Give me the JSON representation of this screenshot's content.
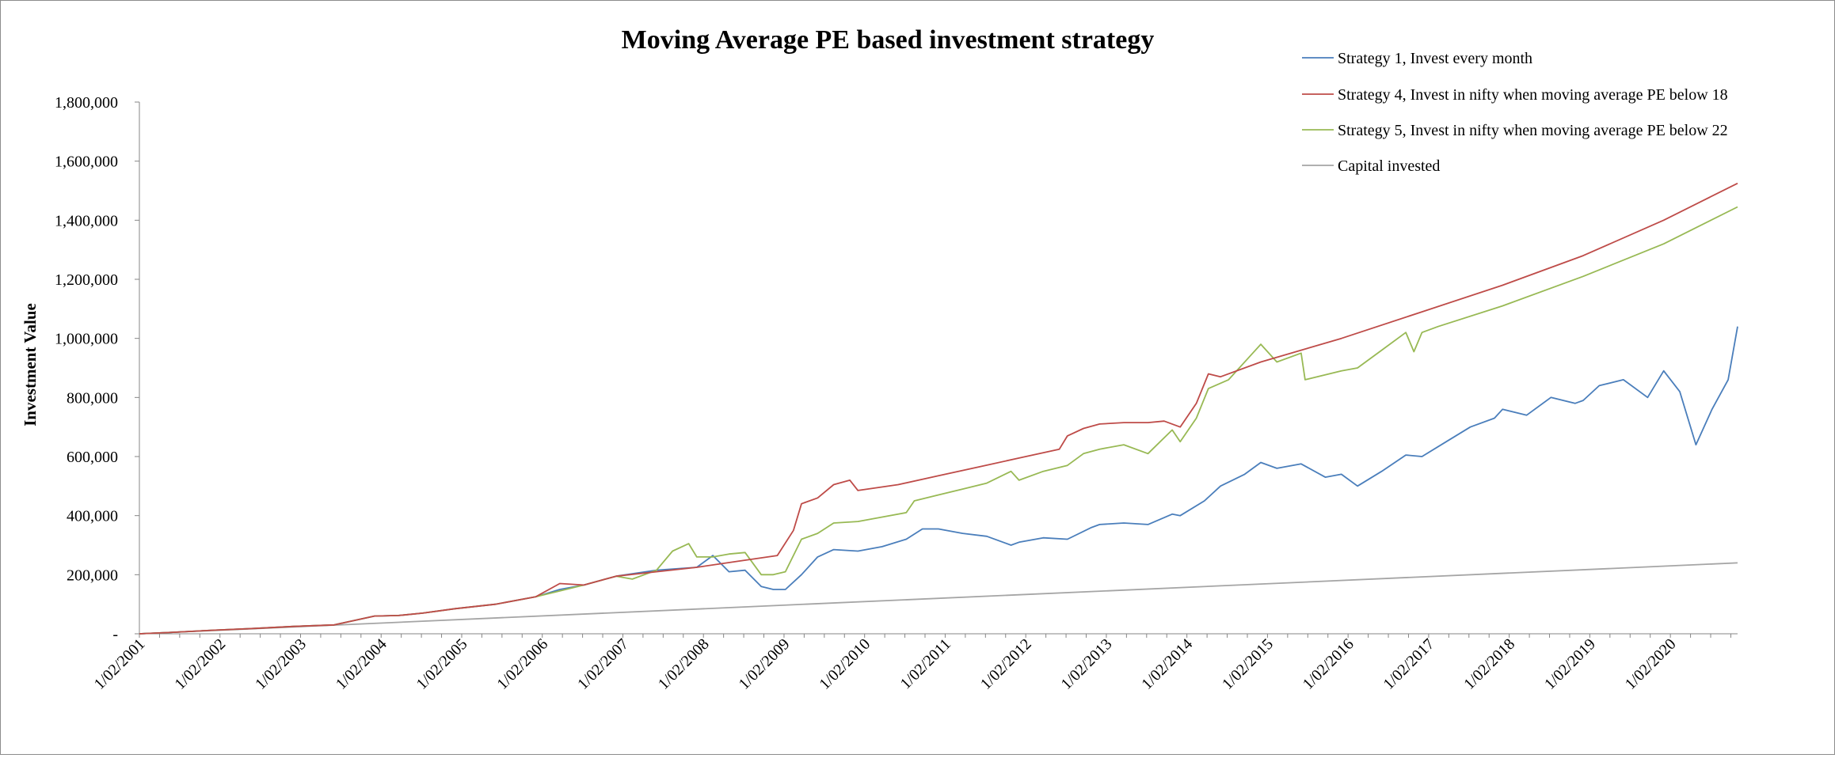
{
  "chart_data": {
    "type": "line",
    "title": "Moving Average PE based investment strategy",
    "xlabel": "",
    "ylabel": "Investment Value",
    "ylim": [
      0,
      1800000
    ],
    "yticks": [
      0,
      200000,
      400000,
      600000,
      800000,
      1000000,
      1200000,
      1400000,
      1600000,
      1800000
    ],
    "ytick_labels": [
      "-",
      "200,000",
      "400,000",
      "600,000",
      "800,000",
      "1,000,000",
      "1,200,000",
      "1,400,000",
      "1,600,000",
      "1,800,000"
    ],
    "x_range": [
      2001.083,
      2020.917
    ],
    "xtick_labels": [
      "1/02/2001",
      "1/02/2002",
      "1/02/2003",
      "1/02/2004",
      "1/02/2005",
      "1/02/2006",
      "1/02/2007",
      "1/02/2008",
      "1/02/2009",
      "1/02/2010",
      "1/02/2011",
      "1/02/2012",
      "1/02/2013",
      "1/02/2014",
      "1/02/2015",
      "1/02/2016",
      "1/02/2017",
      "1/02/2018",
      "1/02/2019",
      "1/02/2020"
    ],
    "grid": false,
    "legend_position": "top-right",
    "series": [
      {
        "name": "Strategy 1, Invest every month",
        "color": "#4a7ebb",
        "x": [
          2001.083,
          2001.5,
          2002.0,
          2002.5,
          2003.0,
          2003.5,
          2004.0,
          2004.3,
          2004.6,
          2005.0,
          2005.5,
          2006.0,
          2006.3,
          2006.6,
          2007.0,
          2007.5,
          2008.0,
          2008.2,
          2008.4,
          2008.6,
          2008.8,
          2008.95,
          2009.1,
          2009.3,
          2009.5,
          2009.7,
          2010.0,
          2010.3,
          2010.6,
          2010.8,
          2011.0,
          2011.3,
          2011.6,
          2011.9,
          2012.0,
          2012.3,
          2012.6,
          2012.9,
          2013.0,
          2013.3,
          2013.6,
          2013.9,
          2014.0,
          2014.3,
          2014.5,
          2014.8,
          2015.0,
          2015.2,
          2015.5,
          2015.8,
          2016.0,
          2016.2,
          2016.5,
          2016.8,
          2017.0,
          2017.3,
          2017.6,
          2017.9,
          2018.0,
          2018.3,
          2018.6,
          2018.9,
          2019.0,
          2019.2,
          2019.5,
          2019.8,
          2020.0,
          2020.2,
          2020.4,
          2020.6,
          2020.8,
          2020.917
        ],
        "y": [
          0,
          5000,
          12000,
          18000,
          25000,
          30000,
          60000,
          62000,
          70000,
          85000,
          100000,
          125000,
          150000,
          165000,
          195000,
          215000,
          225000,
          265000,
          210000,
          215000,
          160000,
          150000,
          150000,
          200000,
          260000,
          285000,
          280000,
          295000,
          320000,
          355000,
          355000,
          340000,
          330000,
          300000,
          310000,
          325000,
          320000,
          360000,
          370000,
          375000,
          370000,
          405000,
          400000,
          450000,
          500000,
          540000,
          580000,
          560000,
          575000,
          530000,
          540000,
          500000,
          550000,
          605000,
          600000,
          650000,
          700000,
          730000,
          760000,
          740000,
          800000,
          780000,
          790000,
          840000,
          860000,
          800000,
          890000,
          820000,
          640000,
          760000,
          860000,
          1040000
        ]
      },
      {
        "name": "Strategy 4, Invest in nifty when moving average PE below 18",
        "color": "#be4b48",
        "x": [
          2001.083,
          2001.5,
          2002.0,
          2002.5,
          2003.0,
          2003.5,
          2004.0,
          2004.3,
          2004.6,
          2005.0,
          2005.5,
          2006.0,
          2006.3,
          2006.6,
          2007.0,
          2007.5,
          2008.0,
          2008.5,
          2009.0,
          2009.2,
          2009.3,
          2009.5,
          2009.7,
          2009.9,
          2010.0,
          2010.5,
          2011.0,
          2011.5,
          2012.0,
          2012.5,
          2012.6,
          2012.8,
          2013.0,
          2013.3,
          2013.6,
          2013.8,
          2014.0,
          2014.2,
          2014.35,
          2014.5,
          2015.0,
          2016.0,
          2017.0,
          2018.0,
          2019.0,
          2020.0,
          2020.917
        ],
        "y": [
          0,
          5000,
          12000,
          18000,
          25000,
          30000,
          60000,
          62000,
          70000,
          85000,
          100000,
          125000,
          170000,
          165000,
          195000,
          210000,
          225000,
          245000,
          265000,
          350000,
          440000,
          460000,
          505000,
          520000,
          485000,
          505000,
          535000,
          565000,
          595000,
          625000,
          670000,
          695000,
          710000,
          715000,
          715000,
          720000,
          700000,
          780000,
          880000,
          870000,
          920000,
          1000000,
          1090000,
          1180000,
          1280000,
          1400000,
          1525000
        ]
      },
      {
        "name": "Strategy 5, Invest in nifty when moving average PE below 22",
        "color": "#98b954",
        "x": [
          2001.083,
          2001.5,
          2002.0,
          2002.5,
          2003.0,
          2003.5,
          2004.0,
          2004.3,
          2004.6,
          2005.0,
          2005.5,
          2006.0,
          2006.3,
          2006.6,
          2007.0,
          2007.2,
          2007.5,
          2007.7,
          2007.9,
          2008.0,
          2008.2,
          2008.4,
          2008.6,
          2008.8,
          2008.95,
          2009.1,
          2009.3,
          2009.5,
          2009.7,
          2010.0,
          2010.3,
          2010.6,
          2010.7,
          2011.0,
          2011.3,
          2011.6,
          2011.9,
          2012.0,
          2012.3,
          2012.6,
          2012.8,
          2013.0,
          2013.3,
          2013.6,
          2013.9,
          2014.0,
          2014.2,
          2014.35,
          2014.6,
          2014.9,
          2015.0,
          2015.2,
          2015.5,
          2015.55,
          2016.0,
          2016.2,
          2016.5,
          2016.8,
          2016.9,
          2017.0,
          2017.2,
          2018.0,
          2019.0,
          2020.0,
          2020.917
        ],
        "y": [
          0,
          5000,
          12000,
          18000,
          25000,
          30000,
          60000,
          62000,
          70000,
          85000,
          100000,
          125000,
          145000,
          165000,
          195000,
          185000,
          215000,
          280000,
          305000,
          260000,
          260000,
          270000,
          275000,
          200000,
          200000,
          210000,
          320000,
          340000,
          375000,
          380000,
          395000,
          410000,
          450000,
          470000,
          490000,
          510000,
          550000,
          520000,
          550000,
          570000,
          610000,
          625000,
          640000,
          610000,
          690000,
          650000,
          730000,
          830000,
          860000,
          950000,
          980000,
          920000,
          950000,
          860000,
          890000,
          900000,
          960000,
          1020000,
          955000,
          1020000,
          1040000,
          1110000,
          1210000,
          1320000,
          1445000
        ]
      },
      {
        "name": "Capital invested",
        "color": "#a5a5a5",
        "x": [
          2001.083,
          2020.917
        ],
        "y": [
          0,
          240000
        ]
      }
    ]
  }
}
